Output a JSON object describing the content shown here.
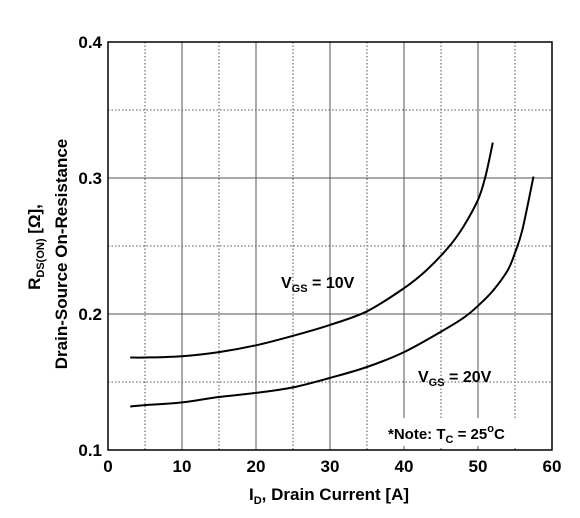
{
  "chart_data": {
    "type": "line",
    "xlabel": {
      "main": "I",
      "sub": "D",
      "rest": ", Drain Current [A]"
    },
    "ylabel": {
      "line1_main": "R",
      "line1_sub": "DS(ON)",
      "line1_rest": " [Ω],",
      "line2": "Drain-Source On-Resistance"
    },
    "xlim": [
      0,
      60
    ],
    "ylim": [
      0.1,
      0.4
    ],
    "x_ticks": [
      0,
      10,
      20,
      30,
      40,
      50,
      60
    ],
    "y_ticks": [
      0.1,
      0.2,
      0.3,
      0.4
    ],
    "x_tick_labels": [
      "0",
      "10",
      "20",
      "30",
      "40",
      "50",
      "60"
    ],
    "y_tick_labels": [
      "0.1",
      "0.2",
      "0.3",
      "0.4"
    ],
    "x_minor_grid": [
      5,
      15,
      25,
      35,
      45,
      55
    ],
    "y_minor_grid": [
      0.15,
      0.25,
      0.35
    ],
    "grid": true,
    "series": [
      {
        "name": "VGS = 10V",
        "label": {
          "main": "V",
          "sub": "GS",
          "rest": " = 10V"
        },
        "x": [
          3,
          5,
          10,
          15,
          20,
          25,
          30,
          35,
          40,
          43,
          46,
          48,
          50,
          51,
          52
        ],
        "y": [
          0.168,
          0.168,
          0.169,
          0.172,
          0.177,
          0.184,
          0.192,
          0.202,
          0.219,
          0.232,
          0.249,
          0.264,
          0.284,
          0.301,
          0.326
        ]
      },
      {
        "name": "VGS = 20V",
        "label": {
          "main": "V",
          "sub": "GS",
          "rest": " = 20V"
        },
        "x": [
          3,
          5,
          10,
          15,
          20,
          25,
          30,
          35,
          40,
          45,
          48,
          50,
          52,
          54,
          55,
          56,
          57.5
        ],
        "y": [
          0.132,
          0.133,
          0.135,
          0.139,
          0.142,
          0.146,
          0.153,
          0.161,
          0.172,
          0.187,
          0.197,
          0.206,
          0.217,
          0.232,
          0.245,
          0.262,
          0.301
        ]
      }
    ],
    "annotations": {
      "note": {
        "main": "*Note: T",
        "sub": "C",
        "rest": " = 25",
        "sup": "o",
        "tail": "C"
      }
    },
    "colors": {
      "line": "#000000",
      "grid": "#555555"
    }
  }
}
